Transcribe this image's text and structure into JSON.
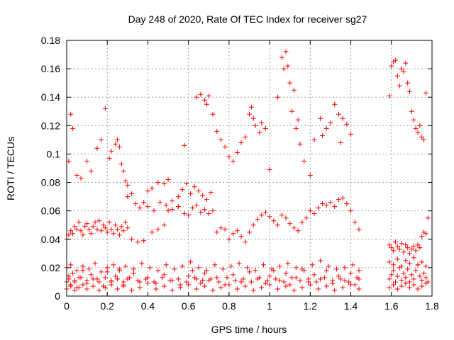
{
  "chart_data": {
    "type": "scatter",
    "title": "Day 248 of 2020, Rate Of TEC Index for receiver sg27",
    "xlabel": "GPS time / hours",
    "ylabel": "ROTI / TECUs",
    "xlim": [
      0,
      1.8
    ],
    "ylim": [
      0,
      0.18
    ],
    "xticks": [
      "0",
      "0.2",
      "0.4",
      "0.6",
      "0.8",
      "1",
      "1.2",
      "1.4",
      "1.6",
      "1.8"
    ],
    "yticks": [
      "0",
      "0.02",
      "0.04",
      "0.06",
      "0.08",
      "0.1",
      "0.12",
      "0.14",
      "0.16",
      "0.18"
    ],
    "grid": true,
    "marker": "+",
    "marker_color": "#ff0000",
    "series": [
      {
        "x": [
          0.0,
          0.01,
          0.02,
          0.03,
          0.04,
          0.05,
          0.06,
          0.08,
          0.1,
          0.12,
          0.15,
          0.18,
          0.2,
          0.22,
          0.24,
          0.26,
          0.28,
          0.3,
          0.33,
          0.36,
          0.4,
          0.44,
          0.48,
          0.52,
          0.56,
          0.6,
          0.62,
          0.64,
          0.66,
          0.68,
          0.7,
          0.74,
          0.78,
          0.82,
          0.86,
          0.9,
          0.94,
          0.98,
          1.0,
          1.02,
          1.05,
          1.08,
          1.1,
          1.13,
          1.16,
          1.19,
          1.22,
          1.25,
          1.28,
          1.31,
          1.34,
          1.37,
          1.4,
          1.42,
          1.44,
          0.0,
          0.02,
          0.04,
          0.06,
          0.08,
          0.1,
          0.13,
          0.16,
          0.19,
          0.22,
          0.25,
          0.28,
          0.32,
          0.36,
          0.4,
          0.44,
          0.48,
          0.52,
          0.56,
          0.6,
          0.64,
          0.68,
          0.72,
          0.76,
          0.8,
          0.84,
          0.88,
          0.92,
          0.96,
          1.0,
          1.04,
          1.08,
          1.12,
          1.16,
          1.2,
          1.24,
          1.28,
          1.32,
          1.36,
          1.4,
          1.44,
          0.0,
          0.02,
          0.05,
          0.08,
          0.11,
          0.14,
          0.17,
          0.2,
          0.23,
          0.26,
          0.29,
          0.33,
          0.37,
          0.41,
          0.45,
          0.49,
          0.53,
          0.57,
          0.61,
          0.65,
          0.69,
          0.73,
          0.77,
          0.81,
          0.85,
          0.89,
          0.93,
          0.97,
          1.01,
          1.05,
          1.09,
          1.13,
          1.17,
          1.21,
          1.25,
          1.29,
          1.33,
          1.37,
          1.41,
          1.44,
          0.01,
          0.04,
          0.07,
          0.1,
          0.13,
          0.16,
          0.19,
          0.22,
          0.25,
          0.28,
          0.31,
          0.35,
          0.39,
          0.43,
          0.47,
          0.51,
          0.55,
          0.59,
          0.63,
          0.67,
          0.71,
          0.75,
          0.79,
          0.83,
          0.87,
          0.91,
          0.95,
          0.99,
          1.03,
          1.07,
          1.11,
          1.15,
          1.19,
          1.23,
          1.27,
          1.31,
          1.35,
          1.39,
          1.43,
          1.59,
          1.6,
          1.61,
          1.62,
          1.63,
          1.64,
          1.65,
          1.66,
          1.67,
          1.68,
          1.69,
          1.7,
          1.71,
          1.72,
          1.73,
          1.74,
          1.75,
          1.76,
          1.77,
          1.78,
          1.59,
          1.61,
          1.63,
          1.65,
          1.67,
          1.69,
          1.71,
          1.73,
          1.75,
          1.77,
          1.59,
          1.61,
          1.63,
          1.65,
          1.67,
          1.69,
          1.71,
          1.73,
          1.75,
          1.77,
          0.0,
          0.01,
          0.02,
          0.03,
          0.04,
          0.05,
          0.06,
          0.07,
          0.08,
          0.09,
          0.1,
          0.11,
          0.12,
          0.13,
          0.14,
          0.15,
          0.16,
          0.17,
          0.18,
          0.19,
          0.2,
          0.21,
          0.22,
          0.23,
          0.24,
          0.25,
          0.26,
          0.27,
          0.28,
          0.29,
          0.3,
          0.32,
          0.35,
          0.38,
          0.42,
          0.45,
          0.48,
          0.5,
          0.52,
          0.55,
          0.58,
          0.6,
          0.62,
          0.64,
          0.66,
          0.68,
          0.7,
          0.72,
          0.74,
          0.76,
          0.78,
          0.8,
          0.82,
          0.84,
          0.86,
          0.88,
          0.9,
          0.92,
          0.94,
          0.96,
          0.98,
          1.0,
          1.02,
          1.04,
          1.06,
          1.08,
          1.1,
          1.12,
          1.14,
          1.16,
          1.18,
          1.2,
          1.22,
          1.24,
          1.26,
          1.28,
          1.3,
          1.32,
          1.34,
          1.36,
          1.38,
          1.4,
          1.42,
          1.44,
          1.59,
          1.6,
          1.61,
          1.62,
          1.63,
          1.64,
          1.65,
          1.66,
          1.67,
          1.68,
          1.69,
          1.7,
          1.71,
          1.72,
          1.73,
          1.74,
          1.75,
          1.76,
          1.77,
          1.78,
          0.01,
          0.02,
          0.03,
          0.05,
          0.07,
          0.1,
          0.12,
          0.15,
          0.17,
          0.19,
          0.21,
          0.22,
          0.24,
          0.25,
          0.26,
          0.27,
          0.28,
          0.29,
          0.3,
          0.64,
          0.66,
          0.68,
          0.69,
          0.7,
          0.72,
          0.74,
          0.76,
          0.78,
          0.8,
          0.82,
          0.84,
          0.86,
          0.88,
          0.9,
          0.91,
          0.92,
          0.93,
          0.95,
          0.96,
          0.98,
          1.0,
          1.04,
          1.06,
          1.07,
          1.08,
          1.09,
          1.1,
          1.11,
          1.12,
          1.13,
          1.14,
          1.15,
          1.17,
          1.2,
          1.22,
          1.25,
          1.26,
          1.28,
          1.3,
          1.32,
          1.34,
          1.35,
          1.36,
          1.38,
          1.4,
          1.59,
          1.6,
          1.61,
          1.62,
          1.63,
          1.64,
          1.65,
          1.66,
          1.67,
          1.68,
          1.69,
          1.7,
          1.71,
          1.72,
          1.73,
          1.74,
          1.75,
          1.76,
          1.77,
          0.4,
          0.42,
          0.45,
          0.48,
          0.5,
          0.55,
          0.57,
          0.59,
          0.61,
          0.63,
          0.65,
          0.67,
          0.69,
          0.71,
          0.3,
          0.32,
          0.34,
          0.36,
          0.38,
          0.4,
          0.43,
          0.46,
          0.49,
          0.52,
          0.55,
          0.58
        ],
        "y": [
          0.01,
          0.014,
          0.008,
          0.016,
          0.011,
          0.006,
          0.013,
          0.018,
          0.009,
          0.015,
          0.012,
          0.007,
          0.017,
          0.01,
          0.014,
          0.019,
          0.008,
          0.012,
          0.016,
          0.01,
          0.013,
          0.009,
          0.015,
          0.011,
          0.008,
          0.014,
          0.018,
          0.012,
          0.009,
          0.016,
          0.011,
          0.013,
          0.008,
          0.015,
          0.01,
          0.017,
          0.012,
          0.009,
          0.014,
          0.018,
          0.011,
          0.016,
          0.008,
          0.013,
          0.019,
          0.01,
          0.015,
          0.012,
          0.018,
          0.009,
          0.014,
          0.011,
          0.016,
          0.008,
          0.012,
          0.005,
          0.007,
          0.004,
          0.006,
          0.008,
          0.005,
          0.007,
          0.004,
          0.006,
          0.008,
          0.005,
          0.007,
          0.004,
          0.006,
          0.009,
          0.005,
          0.007,
          0.004,
          0.006,
          0.008,
          0.005,
          0.007,
          0.004,
          0.006,
          0.008,
          0.005,
          0.007,
          0.004,
          0.006,
          0.008,
          0.005,
          0.007,
          0.004,
          0.006,
          0.008,
          0.005,
          0.007,
          0.004,
          0.006,
          0.008,
          0.005,
          0.02,
          0.022,
          0.018,
          0.021,
          0.019,
          0.023,
          0.017,
          0.02,
          0.022,
          0.018,
          0.021,
          0.019,
          0.023,
          0.02,
          0.018,
          0.022,
          0.019,
          0.021,
          0.024,
          0.02,
          0.018,
          0.022,
          0.019,
          0.021,
          0.023,
          0.02,
          0.018,
          0.022,
          0.019,
          0.021,
          0.023,
          0.02,
          0.018,
          0.022,
          0.025,
          0.021,
          0.019,
          0.02,
          0.022,
          0.018,
          0.012,
          0.01,
          0.013,
          0.011,
          0.012,
          0.01,
          0.013,
          0.011,
          0.012,
          0.01,
          0.013,
          0.011,
          0.012,
          0.01,
          0.013,
          0.011,
          0.012,
          0.01,
          0.013,
          0.011,
          0.012,
          0.01,
          0.013,
          0.011,
          0.012,
          0.01,
          0.013,
          0.011,
          0.012,
          0.01,
          0.013,
          0.011,
          0.012,
          0.01,
          0.013,
          0.011,
          0.012,
          0.01,
          0.013,
          0.012,
          0.015,
          0.018,
          0.01,
          0.014,
          0.02,
          0.011,
          0.016,
          0.013,
          0.019,
          0.01,
          0.015,
          0.012,
          0.018,
          0.022,
          0.014,
          0.011,
          0.016,
          0.013,
          0.01,
          0.006,
          0.008,
          0.005,
          0.007,
          0.009,
          0.006,
          0.008,
          0.005,
          0.007,
          0.009,
          0.024,
          0.022,
          0.026,
          0.021,
          0.025,
          0.023,
          0.027,
          0.022,
          0.024,
          0.021,
          0.04,
          0.043,
          0.046,
          0.044,
          0.049,
          0.047,
          0.052,
          0.046,
          0.043,
          0.049,
          0.051,
          0.047,
          0.044,
          0.049,
          0.052,
          0.047,
          0.053,
          0.046,
          0.05,
          0.048,
          0.045,
          0.052,
          0.047,
          0.044,
          0.05,
          0.047,
          0.043,
          0.049,
          0.046,
          0.052,
          0.048,
          0.04,
          0.038,
          0.039,
          0.045,
          0.047,
          0.05,
          0.06,
          0.061,
          0.063,
          0.058,
          0.057,
          0.062,
          0.064,
          0.059,
          0.061,
          0.058,
          0.06,
          0.045,
          0.048,
          0.047,
          0.04,
          0.044,
          0.046,
          0.042,
          0.038,
          0.045,
          0.05,
          0.054,
          0.057,
          0.059,
          0.056,
          0.053,
          0.05,
          0.057,
          0.055,
          0.051,
          0.048,
          0.046,
          0.052,
          0.055,
          0.06,
          0.058,
          0.062,
          0.065,
          0.064,
          0.066,
          0.063,
          0.068,
          0.069,
          0.065,
          0.06,
          0.052,
          0.047,
          0.036,
          0.034,
          0.032,
          0.038,
          0.035,
          0.033,
          0.037,
          0.031,
          0.036,
          0.034,
          0.03,
          0.033,
          0.035,
          0.032,
          0.036,
          0.034,
          0.042,
          0.045,
          0.044,
          0.055,
          0.095,
          0.128,
          0.118,
          0.085,
          0.083,
          0.095,
          0.088,
          0.104,
          0.11,
          0.132,
          0.097,
          0.102,
          0.107,
          0.11,
          0.105,
          0.093,
          0.088,
          0.081,
          0.078,
          0.14,
          0.142,
          0.138,
          0.135,
          0.141,
          0.128,
          0.116,
          0.11,
          0.105,
          0.098,
          0.095,
          0.101,
          0.108,
          0.112,
          0.128,
          0.133,
          0.125,
          0.12,
          0.115,
          0.122,
          0.118,
          0.089,
          0.14,
          0.168,
          0.16,
          0.172,
          0.162,
          0.15,
          0.13,
          0.145,
          0.118,
          0.124,
          0.107,
          0.095,
          0.085,
          0.11,
          0.125,
          0.113,
          0.118,
          0.122,
          0.135,
          0.128,
          0.108,
          0.125,
          0.121,
          0.114,
          0.141,
          0.162,
          0.165,
          0.166,
          0.155,
          0.148,
          0.16,
          0.158,
          0.164,
          0.15,
          0.144,
          0.13,
          0.124,
          0.118,
          0.115,
          0.12,
          0.112,
          0.11,
          0.143,
          0.074,
          0.076,
          0.08,
          0.079,
          0.082,
          0.07,
          0.075,
          0.079,
          0.072,
          0.077,
          0.074,
          0.071,
          0.068,
          0.073,
          0.07,
          0.072,
          0.065,
          0.062,
          0.066,
          0.063,
          0.06,
          0.066,
          0.064,
          0.067,
          0.063,
          0.106
        ]
      }
    ]
  }
}
